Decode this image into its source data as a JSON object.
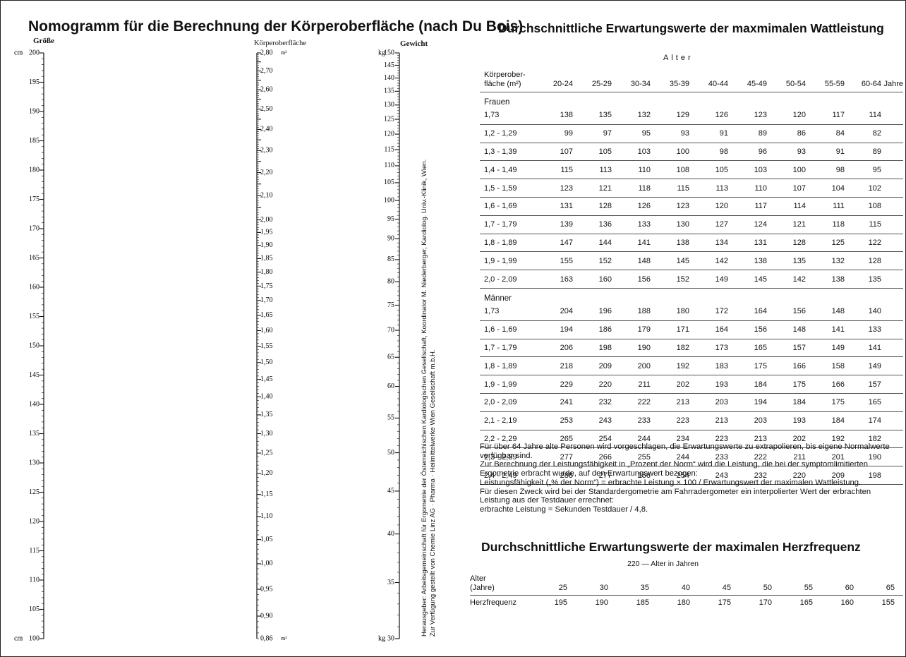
{
  "nomogram": {
    "title": "Nomogramm für die Berechnung der Körperoberfläche (nach Du Bois)",
    "height_scale": {
      "header": "Größe",
      "unit": "cm",
      "labels": [
        "200",
        "195",
        "190",
        "185",
        "180",
        "175",
        "170",
        "165",
        "160",
        "155",
        "150",
        "145",
        "140",
        "135",
        "130",
        "125",
        "120",
        "115",
        "110",
        "105",
        "100"
      ]
    },
    "area_scale": {
      "header": "Körperoberfläche",
      "unit": "m²",
      "labels": [
        "2,80",
        "2,70",
        "2,60",
        "2,50",
        "2,40",
        "2,30",
        "2,20",
        "2,10",
        "2,00",
        "1,95",
        "1,90",
        "1,85",
        "1,80",
        "1,75",
        "1,70",
        "1,65",
        "1,60",
        "1,55",
        "1,50",
        "1,45",
        "1,40",
        "1,35",
        "1,30",
        "1,25",
        "1,20",
        "1,15",
        "1,10",
        "1,05",
        "1,00",
        "0,95",
        "0,90",
        "0,86"
      ]
    },
    "weight_scale": {
      "header": "Gewicht",
      "unit": "kg",
      "labels": [
        "150",
        "145",
        "140",
        "135",
        "130",
        "125",
        "120",
        "115",
        "110",
        "105",
        "100",
        "95",
        "90",
        "85",
        "80",
        "75",
        "70",
        "65",
        "60",
        "55",
        "50",
        "45",
        "40",
        "35",
        "30"
      ]
    },
    "publisher_line1": "Herausgeber: Arbeitsgemeinschaft für Ergometrie der Österreichischen Kardiologischen Gesellschaft, Koordinator M. Niederberger, Kardiolog. Univ.-Klinik, Wien.",
    "publisher_line2": "Zur Verfügung gestellt von Chemie Linz AG · Pharma · Heilmittelwerke Wien Gesellschaft m.b.H."
  },
  "watt": {
    "title": "Durchschnittliche Erwartungswerte der maxmimalen Wattleistung",
    "age_header": "Alter",
    "col_label_1": "Körperober-",
    "col_label_2": "fläche (m²)",
    "ages": [
      "20-24",
      "25-29",
      "30-34",
      "35-39",
      "40-44",
      "45-49",
      "50-54",
      "55-59",
      "60-64"
    ],
    "years_label": "Jahre",
    "groups": [
      {
        "name": "Frauen",
        "rows": [
          {
            "label": "1,73",
            "values": [
              "138",
              "135",
              "132",
              "129",
              "126",
              "123",
              "120",
              "117",
              "114"
            ]
          },
          {
            "label": "1,2 - 1,29",
            "values": [
              "99",
              "97",
              "95",
              "93",
              "91",
              "89",
              "86",
              "84",
              "82"
            ]
          },
          {
            "label": "1,3 - 1,39",
            "values": [
              "107",
              "105",
              "103",
              "100",
              "98",
              "96",
              "93",
              "91",
              "89"
            ]
          },
          {
            "label": "1,4 - 1,49",
            "values": [
              "115",
              "113",
              "110",
              "108",
              "105",
              "103",
              "100",
              "98",
              "95"
            ]
          },
          {
            "label": "1,5 - 1,59",
            "values": [
              "123",
              "121",
              "118",
              "115",
              "113",
              "110",
              "107",
              "104",
              "102"
            ]
          },
          {
            "label": "1,6 - 1,69",
            "values": [
              "131",
              "128",
              "126",
              "123",
              "120",
              "117",
              "114",
              "111",
              "108"
            ]
          },
          {
            "label": "1,7 - 1,79",
            "values": [
              "139",
              "136",
              "133",
              "130",
              "127",
              "124",
              "121",
              "118",
              "115"
            ]
          },
          {
            "label": "1,8 - 1,89",
            "values": [
              "147",
              "144",
              "141",
              "138",
              "134",
              "131",
              "128",
              "125",
              "122"
            ]
          },
          {
            "label": "1,9 - 1,99",
            "values": [
              "155",
              "152",
              "148",
              "145",
              "142",
              "138",
              "135",
              "132",
              "128"
            ]
          },
          {
            "label": "2,0 - 2,09",
            "values": [
              "163",
              "160",
              "156",
              "152",
              "149",
              "145",
              "142",
              "138",
              "135"
            ]
          }
        ]
      },
      {
        "name": "Männer",
        "rows": [
          {
            "label": "1,73",
            "values": [
              "204",
              "196",
              "188",
              "180",
              "172",
              "164",
              "156",
              "148",
              "140"
            ]
          },
          {
            "label": "1,6 - 1,69",
            "values": [
              "194",
              "186",
              "179",
              "171",
              "164",
              "156",
              "148",
              "141",
              "133"
            ]
          },
          {
            "label": "1,7 - 1,79",
            "values": [
              "206",
              "198",
              "190",
              "182",
              "173",
              "165",
              "157",
              "149",
              "141"
            ]
          },
          {
            "label": "1,8 - 1,89",
            "values": [
              "218",
              "209",
              "200",
              "192",
              "183",
              "175",
              "166",
              "158",
              "149"
            ]
          },
          {
            "label": "1,9 - 1,99",
            "values": [
              "229",
              "220",
              "211",
              "202",
              "193",
              "184",
              "175",
              "166",
              "157"
            ]
          },
          {
            "label": "2,0 - 2,09",
            "values": [
              "241",
              "232",
              "222",
              "213",
              "203",
              "194",
              "184",
              "175",
              "165"
            ]
          },
          {
            "label": "2,1 - 2,19",
            "values": [
              "253",
              "243",
              "233",
              "223",
              "213",
              "203",
              "193",
              "184",
              "174"
            ]
          },
          {
            "label": "2,2 - 2,29",
            "values": [
              "265",
              "254",
              "244",
              "234",
              "223",
              "213",
              "202",
              "192",
              "182"
            ]
          },
          {
            "label": "2,3 - 2,39",
            "values": [
              "277",
              "266",
              "255",
              "244",
              "233",
              "222",
              "211",
              "201",
              "190"
            ]
          },
          {
            "label": "2,4 - 2,49",
            "values": [
              "288",
              "277",
              "266",
              "254",
              "243",
              "232",
              "220",
              "209",
              "198"
            ]
          }
        ]
      }
    ],
    "notes": [
      "Für über 64 Jahre alte Personen wird vorgeschlagen, die Erwartungswerte zu extrapolieren, bis eigene Normalwerte verfügbar sind.",
      "Zur Berechnung der Leistungsfähigkeit in „Prozent der Norm“ wird die Leistung, die bei der symptomlimitierten Ergometrie erbracht wurde, auf den Erwartungswert bezogen:",
      "Leistungsfähigkeit („% der Norm“) = erbrachte Leistung × 100 / Erwartungswert der maximalen Wattleistung.",
      "Für diesen Zweck wird bei der Standardergometrie am Fahrradergometer ein interpolierter Wert der erbrachten Leistung aus der Testdauer errechnet:",
      "erbrachte Leistung = Sekunden Testdauer / 4,8."
    ]
  },
  "herz": {
    "title": "Durchschnittliche Erwartungswerte der maximalen Herzfrequenz",
    "formula": "220 — Alter in Jahren",
    "row1_label_1": "Alter",
    "row1_label_2": "(Jahre)",
    "ages": [
      "25",
      "30",
      "35",
      "40",
      "45",
      "50",
      "55",
      "60",
      "65"
    ],
    "row2_label": "Herzfrequenz",
    "values": [
      "195",
      "190",
      "185",
      "180",
      "175",
      "170",
      "165",
      "160",
      "155"
    ]
  }
}
